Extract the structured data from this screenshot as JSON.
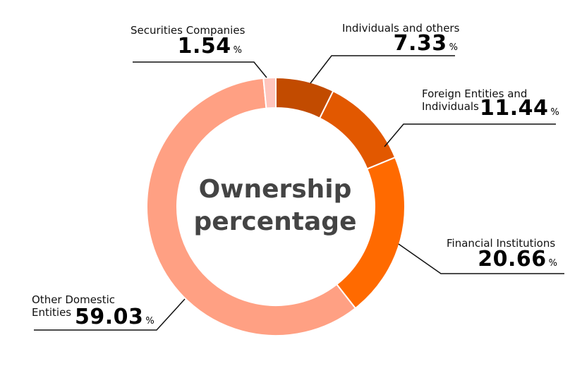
{
  "chart_data": {
    "type": "donut",
    "title": "Ownership percentage",
    "unit": "%",
    "categories": [
      "Individuals and others",
      "Foreign Entities and Individuals",
      "Financial Institutions",
      "Other Domestic Entities",
      "Securities Companies"
    ],
    "values": [
      7.33,
      11.44,
      20.66,
      59.03,
      1.54
    ],
    "colors": [
      "#c24b00",
      "#e25800",
      "#ff6a00",
      "#ffa083",
      "#ffc5bd"
    ]
  }
}
